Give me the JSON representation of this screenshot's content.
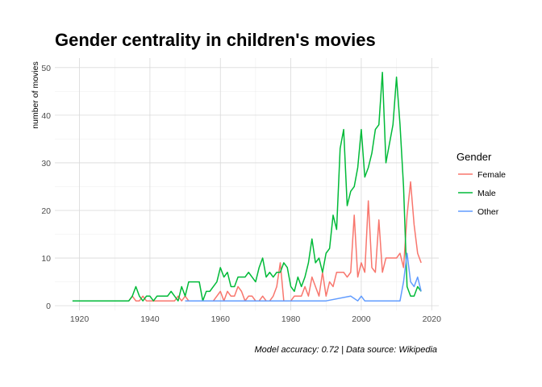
{
  "chart_data": {
    "type": "line",
    "title": "Gender centrality in children's movies",
    "ylabel": "number of movies",
    "xlabel": "",
    "caption": "Model accuracy: 0.72 | Data source: Wikipedia",
    "xlim": [
      1913,
      2022
    ],
    "ylim": [
      -1,
      52
    ],
    "x_ticks": [
      1920,
      1940,
      1960,
      1980,
      2000,
      2020
    ],
    "y_ticks": [
      0,
      10,
      20,
      30,
      40,
      50
    ],
    "grid": true,
    "legend": {
      "title": "Gender",
      "position": "right"
    },
    "series": [
      {
        "name": "Female",
        "color": "#F8766D",
        "points": [
          [
            1934,
            1
          ],
          [
            1935,
            2
          ],
          [
            1936,
            1
          ],
          [
            1937,
            1
          ],
          [
            1938,
            2
          ],
          [
            1939,
            1
          ],
          [
            1940,
            1
          ],
          [
            1941,
            1
          ],
          [
            1942,
            1
          ],
          [
            1943,
            1
          ],
          [
            1944,
            1
          ],
          [
            1945,
            1
          ],
          [
            1946,
            1
          ],
          [
            1947,
            1
          ],
          [
            1948,
            2
          ],
          [
            1949,
            1
          ],
          [
            1950,
            2
          ],
          [
            1951,
            1
          ],
          [
            1955,
            1
          ],
          [
            1957,
            1
          ],
          [
            1958,
            1
          ],
          [
            1959,
            2
          ],
          [
            1960,
            3
          ],
          [
            1961,
            1
          ],
          [
            1962,
            3
          ],
          [
            1963,
            2
          ],
          [
            1964,
            2
          ],
          [
            1965,
            4
          ],
          [
            1966,
            3
          ],
          [
            1967,
            1
          ],
          [
            1968,
            2
          ],
          [
            1969,
            2
          ],
          [
            1970,
            1
          ],
          [
            1971,
            1
          ],
          [
            1972,
            2
          ],
          [
            1973,
            1
          ],
          [
            1974,
            1
          ],
          [
            1975,
            2
          ],
          [
            1976,
            4
          ],
          [
            1977,
            9
          ],
          [
            1978,
            1
          ],
          [
            1979,
            1
          ],
          [
            1980,
            1
          ],
          [
            1981,
            2
          ],
          [
            1982,
            2
          ],
          [
            1983,
            2
          ],
          [
            1984,
            4
          ],
          [
            1985,
            2
          ],
          [
            1986,
            6
          ],
          [
            1987,
            4
          ],
          [
            1988,
            2
          ],
          [
            1989,
            7
          ],
          [
            1990,
            2
          ],
          [
            1991,
            5
          ],
          [
            1992,
            4
          ],
          [
            1993,
            7
          ],
          [
            1994,
            7
          ],
          [
            1995,
            7
          ],
          [
            1996,
            6
          ],
          [
            1997,
            7
          ],
          [
            1998,
            19
          ],
          [
            1999,
            6
          ],
          [
            2000,
            9
          ],
          [
            2001,
            7
          ],
          [
            2002,
            22
          ],
          [
            2003,
            8
          ],
          [
            2004,
            7
          ],
          [
            2005,
            18
          ],
          [
            2006,
            7
          ],
          [
            2007,
            10
          ],
          [
            2008,
            10
          ],
          [
            2009,
            10
          ],
          [
            2010,
            10
          ],
          [
            2011,
            11
          ],
          [
            2012,
            8
          ],
          [
            2013,
            19
          ],
          [
            2014,
            26
          ],
          [
            2015,
            17
          ],
          [
            2016,
            11
          ],
          [
            2017,
            9
          ]
        ]
      },
      {
        "name": "Male",
        "color": "#00BA38",
        "points": [
          [
            1918,
            1
          ],
          [
            1925,
            1
          ],
          [
            1930,
            1
          ],
          [
            1934,
            1
          ],
          [
            1935,
            2
          ],
          [
            1936,
            4
          ],
          [
            1937,
            2
          ],
          [
            1938,
            1
          ],
          [
            1939,
            2
          ],
          [
            1940,
            2
          ],
          [
            1941,
            1
          ],
          [
            1942,
            2
          ],
          [
            1943,
            2
          ],
          [
            1944,
            2
          ],
          [
            1945,
            2
          ],
          [
            1946,
            3
          ],
          [
            1947,
            2
          ],
          [
            1948,
            1
          ],
          [
            1949,
            4
          ],
          [
            1950,
            2
          ],
          [
            1951,
            5
          ],
          [
            1952,
            5
          ],
          [
            1953,
            5
          ],
          [
            1954,
            5
          ],
          [
            1955,
            1
          ],
          [
            1956,
            3
          ],
          [
            1957,
            3
          ],
          [
            1958,
            4
          ],
          [
            1959,
            5
          ],
          [
            1960,
            8
          ],
          [
            1961,
            6
          ],
          [
            1962,
            7
          ],
          [
            1963,
            4
          ],
          [
            1964,
            4
          ],
          [
            1965,
            6
          ],
          [
            1966,
            6
          ],
          [
            1967,
            6
          ],
          [
            1968,
            7
          ],
          [
            1969,
            6
          ],
          [
            1970,
            5
          ],
          [
            1971,
            8
          ],
          [
            1972,
            10
          ],
          [
            1973,
            6
          ],
          [
            1974,
            7
          ],
          [
            1975,
            6
          ],
          [
            1976,
            7
          ],
          [
            1977,
            7
          ],
          [
            1978,
            9
          ],
          [
            1979,
            8
          ],
          [
            1980,
            4
          ],
          [
            1981,
            3
          ],
          [
            1982,
            6
          ],
          [
            1983,
            4
          ],
          [
            1984,
            6
          ],
          [
            1985,
            9
          ],
          [
            1986,
            14
          ],
          [
            1987,
            9
          ],
          [
            1988,
            10
          ],
          [
            1989,
            7
          ],
          [
            1990,
            11
          ],
          [
            1991,
            12
          ],
          [
            1992,
            19
          ],
          [
            1993,
            16
          ],
          [
            1994,
            33
          ],
          [
            1995,
            37
          ],
          [
            1996,
            21
          ],
          [
            1997,
            24
          ],
          [
            1998,
            25
          ],
          [
            1999,
            29
          ],
          [
            2000,
            37
          ],
          [
            2001,
            27
          ],
          [
            2002,
            29
          ],
          [
            2003,
            32
          ],
          [
            2004,
            37
          ],
          [
            2005,
            38
          ],
          [
            2006,
            49
          ],
          [
            2007,
            30
          ],
          [
            2008,
            34
          ],
          [
            2009,
            38
          ],
          [
            2010,
            48
          ],
          [
            2011,
            38
          ],
          [
            2012,
            25
          ],
          [
            2013,
            4
          ],
          [
            2014,
            2
          ],
          [
            2015,
            2
          ],
          [
            2016,
            4
          ],
          [
            2017,
            3
          ]
        ]
      },
      {
        "name": "Other",
        "color": "#619CFF",
        "points": [
          [
            1950,
            1
          ],
          [
            1955,
            1
          ],
          [
            1960,
            1
          ],
          [
            1970,
            1
          ],
          [
            1980,
            1
          ],
          [
            1990,
            1
          ],
          [
            1997,
            2
          ],
          [
            1999,
            1
          ],
          [
            2000,
            2
          ],
          [
            2001,
            1
          ],
          [
            2005,
            1
          ],
          [
            2009,
            1
          ],
          [
            2011,
            1
          ],
          [
            2012,
            5
          ],
          [
            2013,
            11
          ],
          [
            2014,
            5
          ],
          [
            2015,
            4
          ],
          [
            2016,
            6
          ],
          [
            2017,
            3
          ]
        ]
      }
    ]
  }
}
